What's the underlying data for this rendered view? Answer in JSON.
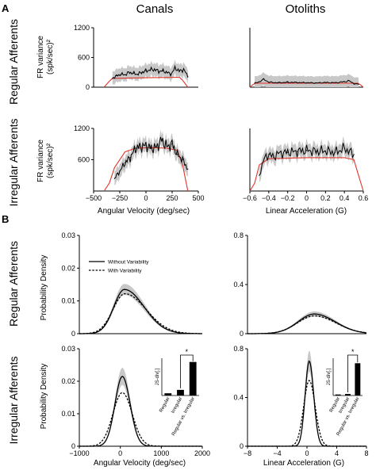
{
  "panel_labels": [
    "A",
    "B"
  ],
  "column_titles": [
    "Canals",
    "Otoliths"
  ],
  "row_titles": [
    "Regular Afferents",
    "Irregular Afferents",
    "Regular Afferents",
    "Irregular Afferents"
  ],
  "ylabel_A_line1": "FR variance",
  "ylabel_A_line2": "(spk/sec)²",
  "ylabel_B": "Probability Density",
  "legend": {
    "solid": "Without Variability",
    "dashed": "With Variability"
  },
  "inset_ylabel": "JS-div[.]",
  "inset_categories": [
    "Regular",
    "Irregular",
    "Regular vs. Irregular"
  ],
  "significance": "*",
  "colors": {
    "model": "#e0352b",
    "data": "#000000",
    "band": "#c8c8c8"
  },
  "chart_data": [
    {
      "id": "A-canals-regular",
      "type": "line",
      "xlabel": "",
      "ylabel": "FR variance (spk/sec)²",
      "xlim": [
        -500,
        500
      ],
      "ylim": [
        0,
        1200
      ],
      "yticks": [
        "0",
        "600",
        "1200"
      ],
      "xticks": [],
      "series": [
        {
          "role": "data",
          "x": [
            -320,
            -280,
            -240,
            -200,
            -160,
            -120,
            -80,
            -40,
            0,
            40,
            80,
            120,
            160,
            200,
            240,
            280,
            320,
            360,
            400
          ],
          "y": [
            180,
            230,
            260,
            250,
            300,
            280,
            260,
            300,
            330,
            350,
            360,
            320,
            330,
            300,
            260,
            390,
            320,
            360,
            220
          ]
        },
        {
          "role": "model",
          "x": [
            -400,
            -350,
            -320,
            0,
            320,
            350,
            400
          ],
          "y": [
            0,
            120,
            180,
            190,
            200,
            140,
            0
          ]
        }
      ]
    },
    {
      "id": "A-otoliths-regular",
      "type": "line",
      "xlabel": "",
      "ylabel": "",
      "xlim": [
        -0.6,
        0.6
      ],
      "ylim": [
        0,
        1200
      ],
      "yticks": [],
      "xticks": [],
      "series": [
        {
          "role": "data",
          "x": [
            -0.55,
            -0.5,
            -0.45,
            -0.4,
            -0.3,
            -0.2,
            -0.1,
            0,
            0.1,
            0.2,
            0.3,
            0.4,
            0.45,
            0.5,
            0.55
          ],
          "y": [
            80,
            110,
            160,
            100,
            90,
            100,
            95,
            90,
            85,
            95,
            90,
            110,
            130,
            70,
            60
          ]
        },
        {
          "role": "model",
          "x": [
            -0.6,
            -0.57,
            -0.54,
            0,
            0.54,
            0.57,
            0.6
          ],
          "y": [
            0,
            50,
            80,
            80,
            80,
            50,
            0
          ]
        }
      ]
    },
    {
      "id": "A-canals-irregular",
      "type": "line",
      "xlabel": "Angular Velocity (deg/sec)",
      "ylabel": "FR variance (spk/sec)²",
      "xlim": [
        -500,
        500
      ],
      "ylim": [
        0,
        1200
      ],
      "xticks": [
        "-500",
        "-250",
        "0",
        "250",
        "500"
      ],
      "yticks": [
        "600",
        "1200"
      ],
      "series": [
        {
          "role": "data",
          "x": [
            -300,
            -250,
            -200,
            -150,
            -100,
            -50,
            0,
            50,
            100,
            150,
            200,
            250,
            300,
            350,
            400
          ],
          "y": [
            240,
            380,
            540,
            640,
            820,
            850,
            870,
            820,
            840,
            980,
            850,
            900,
            700,
            600,
            420
          ]
        },
        {
          "role": "model",
          "x": [
            -400,
            -350,
            -300,
            -200,
            -100,
            0,
            100,
            200,
            300,
            350,
            400
          ],
          "y": [
            0,
            150,
            450,
            750,
            820,
            830,
            830,
            820,
            780,
            500,
            0
          ]
        }
      ]
    },
    {
      "id": "A-otoliths-irregular",
      "type": "line",
      "xlabel": "Linear Acceleration (G)",
      "ylabel": "",
      "xlim": [
        -0.6,
        0.6
      ],
      "ylim": [
        0,
        1200
      ],
      "xticks": [
        "-0.6",
        "-0.4",
        "-0.2",
        "0",
        "0.2",
        "0.4",
        "0.6"
      ],
      "yticks": [],
      "series": [
        {
          "role": "data",
          "x": [
            -0.5,
            -0.45,
            -0.4,
            -0.35,
            -0.3,
            -0.2,
            -0.1,
            0,
            0.1,
            0.2,
            0.3,
            0.4,
            0.45,
            0.5
          ],
          "y": [
            300,
            620,
            700,
            650,
            720,
            740,
            760,
            780,
            760,
            770,
            740,
            820,
            760,
            700
          ]
        },
        {
          "role": "model",
          "x": [
            -0.6,
            -0.55,
            -0.5,
            -0.4,
            0,
            0.4,
            0.5,
            0.55,
            0.6
          ],
          "y": [
            0,
            150,
            500,
            620,
            640,
            640,
            600,
            300,
            0
          ]
        }
      ]
    },
    {
      "id": "B-canals-regular",
      "type": "line",
      "xlabel": "",
      "ylabel": "Probability Density",
      "xlim": [
        -1000,
        2000
      ],
      "ylim": [
        0,
        0.03
      ],
      "yticks": [
        "0",
        "0.01",
        "0.02",
        "0.03"
      ],
      "xticks": [],
      "series": [
        {
          "name": "Without Variability",
          "style": "solid",
          "mean": 100,
          "sd_left": 260,
          "sd_right": 480,
          "peak": 0.0135
        },
        {
          "name": "With Variability",
          "style": "dashed",
          "mean": 110,
          "sd_left": 290,
          "sd_right": 520,
          "peak": 0.0122
        }
      ]
    },
    {
      "id": "B-otoliths-regular",
      "type": "line",
      "xlabel": "",
      "ylabel": "",
      "xlim": [
        -8,
        8
      ],
      "ylim": [
        0,
        0.8
      ],
      "yticks": [
        "0",
        "0.4",
        "0.8"
      ],
      "xticks": [],
      "series": [
        {
          "style": "solid",
          "mean": 1.0,
          "sd_left": 2.2,
          "sd_right": 2.8,
          "peak": 0.16
        },
        {
          "style": "dashed",
          "mean": 1.0,
          "sd_left": 2.3,
          "sd_right": 2.9,
          "peak": 0.145
        }
      ]
    },
    {
      "id": "B-canals-irregular",
      "type": "line",
      "xlabel": "Angular Velocity (deg/sec)",
      "ylabel": "Probability Density",
      "xlim": [
        -1000,
        2000
      ],
      "ylim": [
        0,
        0.03
      ],
      "yticks": [
        "0",
        "0.01",
        "0.02",
        "0.03"
      ],
      "xticks": [
        "-1000",
        "0",
        "1000",
        "2000"
      ],
      "series": [
        {
          "style": "solid",
          "mean": 50,
          "sd_left": 180,
          "sd_right": 190,
          "peak": 0.0215
        },
        {
          "style": "dashed",
          "mean": 50,
          "sd_left": 230,
          "sd_right": 240,
          "peak": 0.0165
        }
      ],
      "inset": {
        "categories": [
          "Regular",
          "Irregular",
          "Regular vs. Irregular"
        ],
        "values": [
          0.012,
          0.03,
          0.18
        ],
        "ylim": [
          0,
          0.2
        ]
      }
    },
    {
      "id": "B-otoliths-irregular",
      "type": "line",
      "xlabel": "Linear Acceleration (G)",
      "ylabel": "",
      "xlim": [
        -8,
        8
      ],
      "ylim": [
        0,
        0.8
      ],
      "yticks": [
        "0",
        "0.4",
        "0.8"
      ],
      "xticks": [
        "-8",
        "-4",
        "0",
        "4",
        "8"
      ],
      "series": [
        {
          "style": "solid",
          "mean": 0.3,
          "sd_left": 0.55,
          "sd_right": 0.6,
          "peak": 0.7
        },
        {
          "style": "dashed",
          "mean": 0.3,
          "sd_left": 0.75,
          "sd_right": 0.8,
          "peak": 0.54
        }
      ],
      "inset": {
        "categories": [
          "Regular",
          "Irregular",
          "Regular vs. Irregular"
        ],
        "values": [
          0.008,
          0.012,
          0.26
        ],
        "ylim": [
          0,
          0.3
        ]
      }
    }
  ]
}
